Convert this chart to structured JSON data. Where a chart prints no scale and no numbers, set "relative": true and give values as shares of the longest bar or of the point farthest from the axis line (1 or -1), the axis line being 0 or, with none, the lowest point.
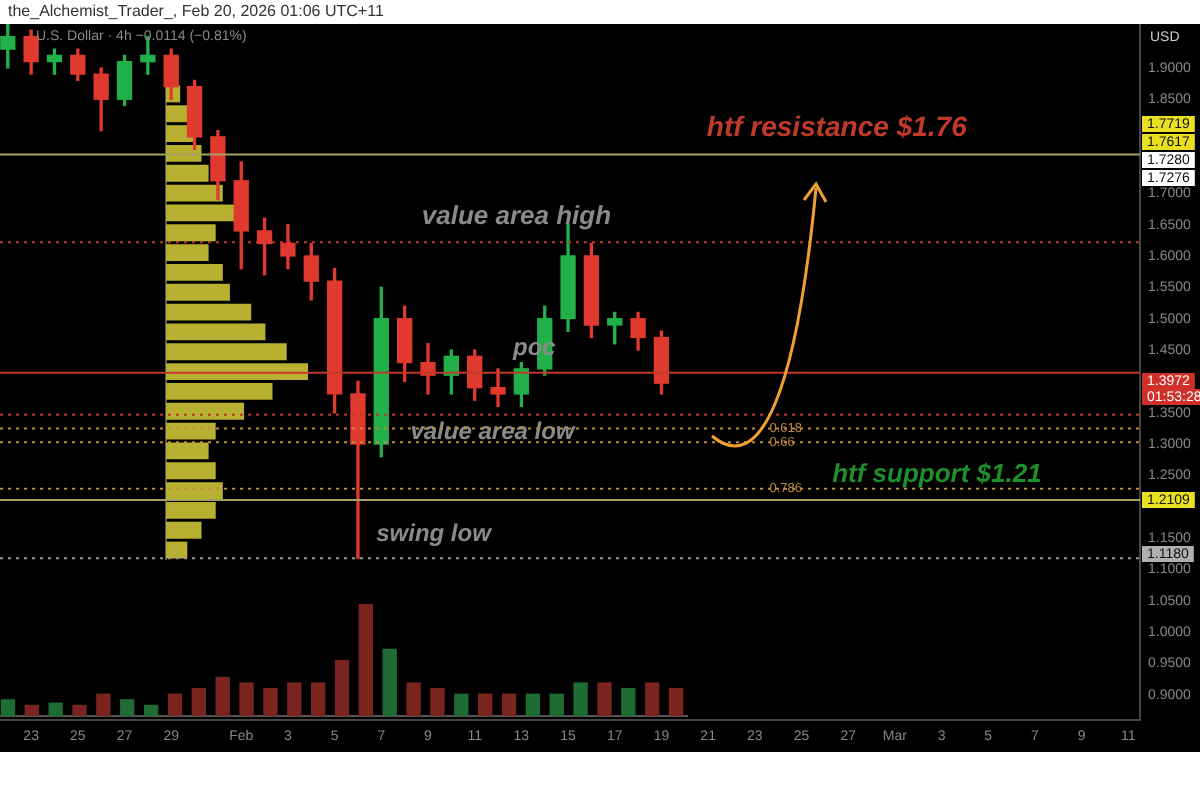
{
  "chart_data": [
    {
      "type": "candlestick",
      "title": "U.S. Dollar · 4h   −0.0114 (−0.81%)",
      "subtitle": "the_Alchemist_Trader_, Feb 20, 2026 01:06 UTC+11",
      "ylabel": "USD",
      "x": [
        "2026-01-22",
        "2026-01-23",
        "2026-01-24",
        "2026-01-25",
        "2026-01-26",
        "2026-01-27",
        "2026-01-28",
        "2026-01-29",
        "2026-01-30",
        "2026-01-31",
        "2026-02-01",
        "2026-02-02",
        "2026-02-03",
        "2026-02-04",
        "2026-02-05",
        "2026-02-06",
        "2026-02-07",
        "2026-02-08",
        "2026-02-09",
        "2026-02-10",
        "2026-02-11",
        "2026-02-12",
        "2026-02-13",
        "2026-02-14",
        "2026-02-15",
        "2026-02-16",
        "2026-02-17",
        "2026-02-18",
        "2026-02-19"
      ],
      "ohlc": [
        [
          1.93,
          1.97,
          1.9,
          1.95
        ],
        [
          1.95,
          1.96,
          1.89,
          1.91
        ],
        [
          1.91,
          1.93,
          1.89,
          1.92
        ],
        [
          1.92,
          1.93,
          1.88,
          1.89
        ],
        [
          1.89,
          1.9,
          1.8,
          1.85
        ],
        [
          1.85,
          1.92,
          1.84,
          1.91
        ],
        [
          1.91,
          1.95,
          1.89,
          1.92
        ],
        [
          1.92,
          1.93,
          1.85,
          1.87
        ],
        [
          1.87,
          1.88,
          1.77,
          1.79
        ],
        [
          1.79,
          1.8,
          1.69,
          1.72
        ],
        [
          1.72,
          1.75,
          1.58,
          1.64
        ],
        [
          1.64,
          1.66,
          1.57,
          1.62
        ],
        [
          1.62,
          1.65,
          1.58,
          1.6
        ],
        [
          1.6,
          1.62,
          1.53,
          1.56
        ],
        [
          1.56,
          1.58,
          1.35,
          1.38
        ],
        [
          1.38,
          1.4,
          1.118,
          1.3
        ],
        [
          1.3,
          1.55,
          1.28,
          1.5
        ],
        [
          1.5,
          1.52,
          1.4,
          1.43
        ],
        [
          1.43,
          1.46,
          1.38,
          1.41
        ],
        [
          1.41,
          1.45,
          1.38,
          1.44
        ],
        [
          1.44,
          1.45,
          1.37,
          1.39
        ],
        [
          1.39,
          1.42,
          1.36,
          1.38
        ],
        [
          1.38,
          1.43,
          1.36,
          1.42
        ],
        [
          1.42,
          1.52,
          1.41,
          1.5
        ],
        [
          1.5,
          1.65,
          1.48,
          1.6
        ],
        [
          1.6,
          1.62,
          1.47,
          1.49
        ],
        [
          1.49,
          1.51,
          1.46,
          1.5
        ],
        [
          1.5,
          1.51,
          1.45,
          1.47
        ],
        [
          1.47,
          1.48,
          1.38,
          1.3972
        ]
      ],
      "colors": [
        "#22b04b",
        "#e0392f",
        "#22b04b",
        "#e0392f",
        "#e0392f",
        "#22b04b",
        "#22b04b",
        "#e0392f",
        "#e0392f",
        "#e0392f",
        "#e0392f",
        "#e0392f",
        "#e0392f",
        "#e0392f",
        "#e0392f",
        "#e0392f",
        "#22b04b",
        "#e0392f",
        "#e0392f",
        "#22b04b",
        "#e0392f",
        "#e0392f",
        "#22b04b",
        "#22b04b",
        "#22b04b",
        "#e0392f",
        "#22b04b",
        "#e0392f",
        "#e0392f"
      ],
      "xlim": [
        "2026-01-21T16:00",
        "2026-03-11T12:00"
      ],
      "xticks": [
        {
          "value": "2026-01-23",
          "label": "23"
        },
        {
          "value": "2026-01-25",
          "label": "25"
        },
        {
          "value": "2026-01-27",
          "label": "27"
        },
        {
          "value": "2026-01-29",
          "label": "29"
        },
        {
          "value": "2026-02-01",
          "label": "Feb"
        },
        {
          "value": "2026-02-03",
          "label": "3"
        },
        {
          "value": "2026-02-05",
          "label": "5"
        },
        {
          "value": "2026-02-07",
          "label": "7"
        },
        {
          "value": "2026-02-09",
          "label": "9"
        },
        {
          "value": "2026-02-11",
          "label": "11"
        },
        {
          "value": "2026-02-13",
          "label": "13"
        },
        {
          "value": "2026-02-15",
          "label": "15"
        },
        {
          "value": "2026-02-17",
          "label": "17"
        },
        {
          "value": "2026-02-19",
          "label": "19"
        },
        {
          "value": "2026-02-21",
          "label": "21"
        },
        {
          "value": "2026-02-23",
          "label": "23"
        },
        {
          "value": "2026-02-25",
          "label": "25"
        },
        {
          "value": "2026-02-27",
          "label": "27"
        },
        {
          "value": "2026-03-01",
          "label": "Mar"
        },
        {
          "value": "2026-03-03",
          "label": "3"
        },
        {
          "value": "2026-03-05",
          "label": "5"
        },
        {
          "value": "2026-03-07",
          "label": "7"
        },
        {
          "value": "2026-03-09",
          "label": "9"
        },
        {
          "value": "2026-03-11",
          "label": "11"
        }
      ],
      "ylim": [
        0.86,
        1.97
      ],
      "yticks": [
        {
          "value": 0.9,
          "label": "0.9000"
        },
        {
          "value": 0.95,
          "label": "0.9500"
        },
        {
          "value": 1.0,
          "label": "1.0000"
        },
        {
          "value": 1.05,
          "label": "1.0500"
        },
        {
          "value": 1.1,
          "label": "1.1000"
        },
        {
          "value": 1.15,
          "label": "1.1500"
        },
        {
          "value": 1.25,
          "label": "1.2500"
        },
        {
          "value": 1.3,
          "label": "1.3000"
        },
        {
          "value": 1.35,
          "label": "1.3500"
        },
        {
          "value": 1.45,
          "label": "1.4500"
        },
        {
          "value": 1.5,
          "label": "1.5000"
        },
        {
          "value": 1.55,
          "label": "1.5500"
        },
        {
          "value": 1.6,
          "label": "1.6000"
        },
        {
          "value": 1.65,
          "label": "1.6500"
        },
        {
          "value": 1.7,
          "label": "1.7000"
        },
        {
          "value": 1.85,
          "label": "1.8500"
        },
        {
          "value": 1.9,
          "label": "1.9000"
        }
      ],
      "ref_lines": [
        {
          "axis": "y",
          "value": 1.7617,
          "label": "htf resistance $1.76",
          "color": "#a8a060",
          "line_style": "solid"
        },
        {
          "axis": "y",
          "value": 1.2109,
          "label": "htf support $1.21",
          "color": "#a8a060",
          "line_style": "solid"
        },
        {
          "axis": "y",
          "value": 1.622,
          "label": "value area high",
          "color": "#c0392b",
          "line_style": "dotted"
        },
        {
          "axis": "y",
          "value": 1.414,
          "label": "poc",
          "color": "#c0392b",
          "line_style": "solid"
        },
        {
          "axis": "y",
          "value": 1.347,
          "label": "value area low",
          "color": "#c0392b",
          "line_style": "dotted"
        },
        {
          "axis": "y",
          "value": 1.118,
          "label": "swing low",
          "color": "#9a9a9a",
          "line_style": "dotted"
        },
        {
          "axis": "y",
          "value": 1.325,
          "color": "#c08a3a",
          "line_style": "dotted"
        },
        {
          "axis": "y",
          "value": 1.303,
          "color": "#c08a3a",
          "line_style": "dotted"
        },
        {
          "axis": "y",
          "value": 1.229,
          "color": "#c08a3a",
          "line_style": "dotted"
        }
      ],
      "annotations": [
        "1.7719",
        "1.7617",
        "1.7280",
        "1.7276",
        "1.3972",
        "01:53:28",
        "1.2109",
        "1.1180",
        {
          "text": "0.618",
          "y": 1.325
        },
        {
          "text": "0.66",
          "y": 1.303
        },
        {
          "text": "0.786",
          "y": 1.229
        }
      ]
    },
    {
      "type": "bar",
      "relative": true,
      "tick_labels": false,
      "categories": [
        null,
        null,
        null,
        null,
        null,
        null,
        null,
        null,
        null,
        null,
        null,
        null,
        null,
        null,
        null,
        null,
        null,
        null,
        null,
        null,
        null,
        null,
        null,
        null,
        null,
        null,
        null,
        null,
        null
      ],
      "values": [
        0.15,
        0.1,
        0.12,
        0.1,
        0.2,
        0.15,
        0.1,
        0.2,
        0.25,
        0.35,
        0.3,
        0.25,
        0.3,
        0.3,
        0.5,
        1,
        0.6,
        0.3,
        0.25,
        0.2,
        0.2,
        0.2,
        0.2,
        0.2,
        0.3,
        0.3,
        0.25,
        0.3,
        0.25
      ],
      "colors": [
        "#1f6b34",
        "#7a2420",
        "#1f6b34",
        "#7a2420",
        "#7a2420",
        "#1f6b34",
        "#1f6b34",
        "#7a2420",
        "#7a2420",
        "#7a2420",
        "#7a2420",
        "#7a2420",
        "#7a2420",
        "#7a2420",
        "#7a2420",
        "#7a2420",
        "#1f6b34",
        "#7a2420",
        "#7a2420",
        "#1f6b34",
        "#7a2420",
        "#7a2420",
        "#1f6b34",
        "#1f6b34",
        "#1f6b34",
        "#7a2420",
        "#1f6b34",
        "#7a2420",
        "#7a2420"
      ]
    },
    {
      "type": "bar",
      "orientation": "horizontal",
      "relative": true,
      "tick_labels": false,
      "color": "#b8b030",
      "categories": [
        null,
        null,
        null,
        null,
        null,
        null,
        null,
        null,
        null,
        null,
        null,
        null,
        null,
        null,
        null,
        null,
        null,
        null,
        null,
        null,
        null,
        null,
        null,
        null
      ],
      "values": [
        0.1,
        0.15,
        0.2,
        0.25,
        0.3,
        0.4,
        0.5,
        0.35,
        0.3,
        0.4,
        0.45,
        0.6,
        0.7,
        0.85,
        1,
        0.75,
        0.55,
        0.35,
        0.3,
        0.35,
        0.4,
        0.35,
        0.25,
        0.15
      ]
    }
  ]
}
